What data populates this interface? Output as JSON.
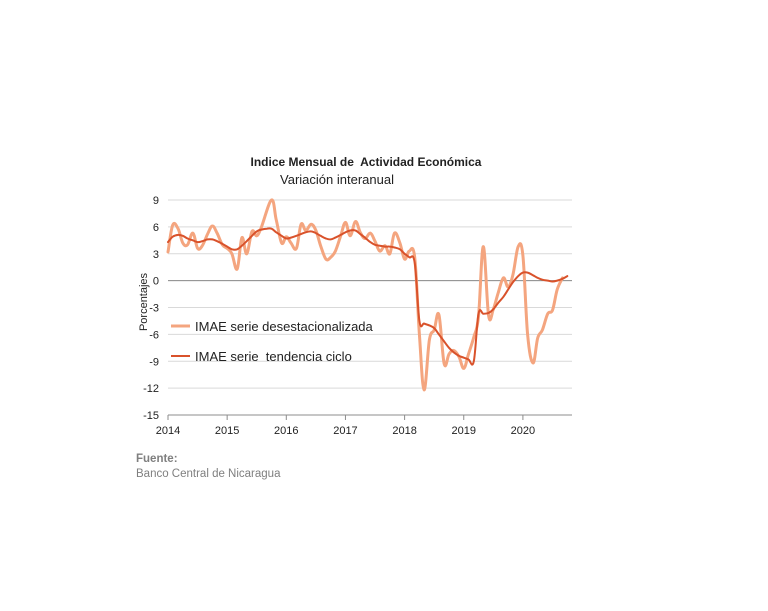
{
  "chart_data": {
    "type": "line",
    "title": "Indice Mensual de  Actividad Económica",
    "subtitle": "Variación interanual",
    "xlabel": "",
    "ylabel": "Porcentajes",
    "ylim": [
      -15,
      9
    ],
    "yticks": [
      9,
      6,
      3,
      0,
      -3,
      -6,
      -9,
      -12,
      -15
    ],
    "xlim": [
      2014,
      2020.83
    ],
    "xticks": [
      "2014",
      "2015",
      "2016",
      "2017",
      "2018",
      "2019",
      "2020"
    ],
    "grid": true,
    "legend_position": "center-left",
    "series": [
      {
        "name": "IMAE serie desestacionalizada",
        "color": "#f4a57f",
        "points": [
          [
            2014.0,
            3.2
          ],
          [
            2014.08,
            6.2
          ],
          [
            2014.17,
            5.8
          ],
          [
            2014.25,
            4.2
          ],
          [
            2014.33,
            4.0
          ],
          [
            2014.42,
            5.3
          ],
          [
            2014.5,
            3.6
          ],
          [
            2014.58,
            3.9
          ],
          [
            2014.67,
            5.2
          ],
          [
            2014.75,
            6.1
          ],
          [
            2014.83,
            5.3
          ],
          [
            2014.92,
            4.0
          ],
          [
            2015.0,
            3.6
          ],
          [
            2015.08,
            3.0
          ],
          [
            2015.17,
            1.3
          ],
          [
            2015.25,
            4.8
          ],
          [
            2015.33,
            3.0
          ],
          [
            2015.42,
            5.5
          ],
          [
            2015.5,
            5.0
          ],
          [
            2015.58,
            6.0
          ],
          [
            2015.75,
            9.0
          ],
          [
            2015.83,
            6.8
          ],
          [
            2015.92,
            4.2
          ],
          [
            2016.0,
            4.9
          ],
          [
            2016.08,
            4.2
          ],
          [
            2016.17,
            3.6
          ],
          [
            2016.25,
            6.3
          ],
          [
            2016.33,
            5.6
          ],
          [
            2016.42,
            6.3
          ],
          [
            2016.5,
            5.6
          ],
          [
            2016.58,
            3.9
          ],
          [
            2016.67,
            2.4
          ],
          [
            2016.75,
            2.6
          ],
          [
            2016.83,
            3.3
          ],
          [
            2016.92,
            5.0
          ],
          [
            2017.0,
            6.5
          ],
          [
            2017.08,
            5.0
          ],
          [
            2017.17,
            6.6
          ],
          [
            2017.25,
            5.4
          ],
          [
            2017.33,
            4.7
          ],
          [
            2017.42,
            5.3
          ],
          [
            2017.5,
            4.4
          ],
          [
            2017.58,
            3.3
          ],
          [
            2017.67,
            3.9
          ],
          [
            2017.75,
            3.0
          ],
          [
            2017.83,
            5.3
          ],
          [
            2017.92,
            4.2
          ],
          [
            2018.0,
            2.4
          ],
          [
            2018.08,
            3.3
          ],
          [
            2018.17,
            2.6
          ],
          [
            2018.25,
            -6.0
          ],
          [
            2018.33,
            -12.2
          ],
          [
            2018.42,
            -6.6
          ],
          [
            2018.5,
            -5.5
          ],
          [
            2018.58,
            -3.8
          ],
          [
            2018.67,
            -9.3
          ],
          [
            2018.75,
            -8.2
          ],
          [
            2018.83,
            -7.8
          ],
          [
            2018.92,
            -8.5
          ],
          [
            2019.0,
            -9.8
          ],
          [
            2019.08,
            -8.2
          ],
          [
            2019.17,
            -6.3
          ],
          [
            2019.25,
            -4.0
          ],
          [
            2019.33,
            3.8
          ],
          [
            2019.42,
            -3.9
          ],
          [
            2019.5,
            -3.2
          ],
          [
            2019.58,
            -1.4
          ],
          [
            2019.67,
            0.3
          ],
          [
            2019.75,
            -0.7
          ],
          [
            2019.83,
            0.6
          ],
          [
            2019.92,
            3.8
          ],
          [
            2020.0,
            2.8
          ],
          [
            2020.08,
            -6.0
          ],
          [
            2020.17,
            -9.2
          ],
          [
            2020.25,
            -6.4
          ],
          [
            2020.33,
            -5.5
          ],
          [
            2020.42,
            -3.7
          ],
          [
            2020.5,
            -3.3
          ],
          [
            2020.58,
            -1.0
          ],
          [
            2020.67,
            0.3
          ]
        ]
      },
      {
        "name": "IMAE serie  tendencia ciclo",
        "color": "#d9522b",
        "points": [
          [
            2014.0,
            4.3
          ],
          [
            2014.08,
            4.9
          ],
          [
            2014.17,
            5.1
          ],
          [
            2014.25,
            5.0
          ],
          [
            2014.33,
            4.7
          ],
          [
            2014.42,
            4.5
          ],
          [
            2014.5,
            4.3
          ],
          [
            2014.58,
            4.4
          ],
          [
            2014.67,
            4.6
          ],
          [
            2014.75,
            4.6
          ],
          [
            2014.83,
            4.4
          ],
          [
            2014.92,
            4.1
          ],
          [
            2015.0,
            3.8
          ],
          [
            2015.08,
            3.5
          ],
          [
            2015.17,
            3.5
          ],
          [
            2015.25,
            3.9
          ],
          [
            2015.33,
            4.4
          ],
          [
            2015.42,
            5.0
          ],
          [
            2015.5,
            5.5
          ],
          [
            2015.58,
            5.7
          ],
          [
            2015.67,
            5.8
          ],
          [
            2015.75,
            5.8
          ],
          [
            2015.83,
            5.4
          ],
          [
            2015.92,
            5.0
          ],
          [
            2016.0,
            4.7
          ],
          [
            2016.08,
            4.8
          ],
          [
            2016.17,
            5.0
          ],
          [
            2016.25,
            5.2
          ],
          [
            2016.33,
            5.4
          ],
          [
            2016.42,
            5.5
          ],
          [
            2016.5,
            5.3
          ],
          [
            2016.58,
            5.0
          ],
          [
            2016.67,
            4.7
          ],
          [
            2016.75,
            4.6
          ],
          [
            2016.83,
            4.8
          ],
          [
            2016.92,
            5.1
          ],
          [
            2017.0,
            5.4
          ],
          [
            2017.08,
            5.6
          ],
          [
            2017.17,
            5.6
          ],
          [
            2017.25,
            5.2
          ],
          [
            2017.33,
            4.8
          ],
          [
            2017.42,
            4.3
          ],
          [
            2017.5,
            4.0
          ],
          [
            2017.58,
            3.9
          ],
          [
            2017.67,
            3.8
          ],
          [
            2017.75,
            3.8
          ],
          [
            2017.83,
            3.7
          ],
          [
            2017.92,
            3.5
          ],
          [
            2018.0,
            3.0
          ],
          [
            2018.08,
            2.6
          ],
          [
            2018.17,
            2.0
          ],
          [
            2018.25,
            -4.5
          ],
          [
            2018.33,
            -4.8
          ],
          [
            2018.42,
            -5.0
          ],
          [
            2018.5,
            -5.3
          ],
          [
            2018.58,
            -6.0
          ],
          [
            2018.67,
            -6.8
          ],
          [
            2018.75,
            -7.5
          ],
          [
            2018.83,
            -8.0
          ],
          [
            2018.92,
            -8.4
          ],
          [
            2019.0,
            -8.6
          ],
          [
            2019.08,
            -8.8
          ],
          [
            2019.17,
            -9.0
          ],
          [
            2019.25,
            -3.7
          ],
          [
            2019.33,
            -3.7
          ],
          [
            2019.42,
            -3.6
          ],
          [
            2019.5,
            -3.2
          ],
          [
            2019.58,
            -2.5
          ],
          [
            2019.67,
            -1.8
          ],
          [
            2019.75,
            -1.0
          ],
          [
            2019.83,
            -0.2
          ],
          [
            2019.92,
            0.5
          ],
          [
            2020.0,
            0.9
          ],
          [
            2020.08,
            0.9
          ],
          [
            2020.17,
            0.6
          ],
          [
            2020.25,
            0.3
          ],
          [
            2020.33,
            0.1
          ],
          [
            2020.42,
            0.0
          ],
          [
            2020.5,
            -0.1
          ],
          [
            2020.58,
            0.0
          ],
          [
            2020.67,
            0.2
          ],
          [
            2020.75,
            0.5
          ]
        ]
      }
    ]
  },
  "source": {
    "heading": "Fuente:",
    "text": "Banco Central de Nicaragua"
  }
}
